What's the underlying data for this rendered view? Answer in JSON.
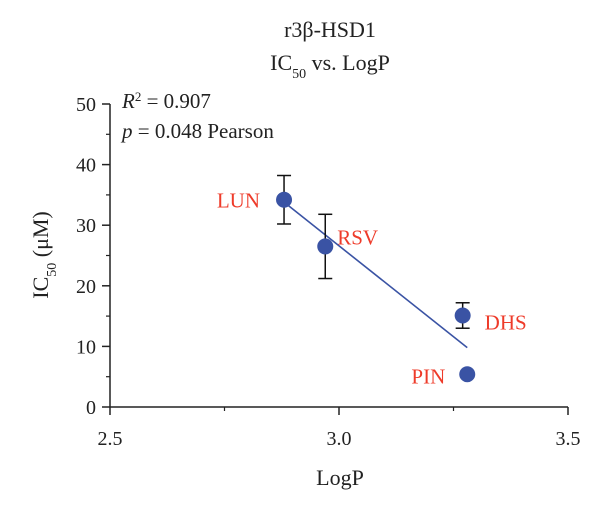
{
  "chart_data": {
    "type": "scatter",
    "title": "r3β-HSD1",
    "subtitle_main": "IC",
    "subtitle_sub": "50",
    "subtitle_rest": " vs. LogP",
    "xlabel": "LogP",
    "ylabel_main": "IC",
    "ylabel_sub": "50",
    "ylabel_rest": " (μM)",
    "xlim": [
      2.5,
      3.5
    ],
    "ylim": [
      0,
      50
    ],
    "xticks": [
      "2.5",
      "3.0",
      "3.5"
    ],
    "xtick_values": [
      2.5,
      3.0,
      3.5
    ],
    "yticks": [
      "0",
      "10",
      "20",
      "30",
      "40",
      "50"
    ],
    "ytick_values": [
      0,
      10,
      20,
      30,
      40,
      50
    ],
    "grid": false,
    "annotations": {
      "r2_label": "R",
      "r2_sup": "2",
      "r2_value": " = 0.907",
      "p_label": "p",
      "p_value": " = 0.048 Pearson"
    },
    "points": [
      {
        "label": "LUN",
        "x": 2.88,
        "y": 34.2,
        "err_low": 30.2,
        "err_high": 38.2
      },
      {
        "label": "RSV",
        "x": 2.97,
        "y": 26.5,
        "err_low": 21.2,
        "err_high": 31.8
      },
      {
        "label": "DHS",
        "x": 3.27,
        "y": 15.1,
        "err_low": 13.0,
        "err_high": 17.2
      },
      {
        "label": "PIN",
        "x": 3.28,
        "y": 5.4,
        "err_low": null,
        "err_high": null
      }
    ],
    "fit_line": {
      "x": [
        2.88,
        3.28
      ],
      "y": [
        33.8,
        9.8
      ]
    },
    "colors": {
      "marker": "#3a53a4",
      "fit": "#3a53a4",
      "label": "#ee3b2a",
      "axis": "#222222"
    }
  }
}
